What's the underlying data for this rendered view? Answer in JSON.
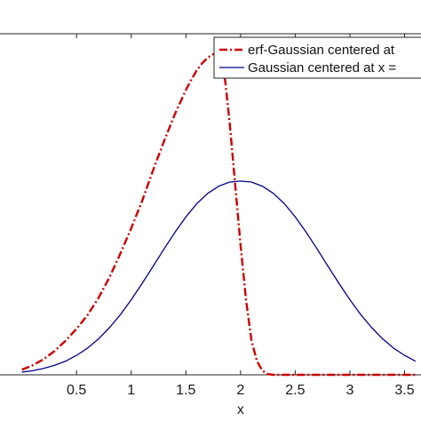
{
  "chart_data": {
    "type": "line",
    "xlabel": "x",
    "ylabel": "",
    "xlim": [
      -0.2,
      3.65
    ],
    "ylim": [
      0,
      1
    ],
    "x_ticks": [
      0.5,
      1,
      1.5,
      2,
      2.5,
      3,
      3.5
    ],
    "x_tick_labels": [
      "0.5",
      "1",
      "1.5",
      "2",
      "2.5",
      "3",
      "3.5"
    ],
    "legend_position": "top-right",
    "series": [
      {
        "name": "erf-Gaussian centered at",
        "color": "#cc0000",
        "style": "dash-dot",
        "x": [
          0.0,
          0.1,
          0.2,
          0.3,
          0.4,
          0.5,
          0.6,
          0.7,
          0.8,
          0.9,
          1.0,
          1.1,
          1.2,
          1.3,
          1.4,
          1.5,
          1.55,
          1.6,
          1.65,
          1.7,
          1.75,
          1.8,
          1.83,
          1.86,
          1.9,
          1.95,
          2.0,
          2.05,
          2.1,
          2.15,
          2.2,
          2.25,
          2.3,
          2.4,
          2.6,
          2.8,
          3.0,
          3.2,
          3.4,
          3.6
        ],
        "y": [
          0.015,
          0.028,
          0.046,
          0.07,
          0.1,
          0.135,
          0.175,
          0.225,
          0.285,
          0.355,
          0.43,
          0.51,
          0.6,
          0.685,
          0.765,
          0.835,
          0.866,
          0.893,
          0.914,
          0.93,
          0.94,
          0.938,
          0.915,
          0.86,
          0.74,
          0.56,
          0.38,
          0.22,
          0.1,
          0.04,
          0.012,
          0.002,
          0.0,
          0.0,
          0.0,
          0.0,
          0.0,
          0.0,
          0.0,
          0.0
        ]
      },
      {
        "name": "Gaussian centered at x =",
        "color": "#00008b",
        "style": "solid",
        "x": [
          0.0,
          0.1,
          0.2,
          0.3,
          0.4,
          0.5,
          0.6,
          0.7,
          0.8,
          0.9,
          1.0,
          1.1,
          1.2,
          1.3,
          1.4,
          1.5,
          1.6,
          1.7,
          1.8,
          1.9,
          2.0,
          2.1,
          2.2,
          2.3,
          2.4,
          2.5,
          2.6,
          2.7,
          2.8,
          2.9,
          3.0,
          3.1,
          3.2,
          3.3,
          3.4,
          3.5,
          3.6
        ],
        "y": [
          0.008,
          0.012,
          0.019,
          0.028,
          0.04,
          0.057,
          0.078,
          0.105,
          0.138,
          0.176,
          0.22,
          0.268,
          0.318,
          0.369,
          0.418,
          0.463,
          0.502,
          0.532,
          0.553,
          0.565,
          0.568,
          0.565,
          0.553,
          0.532,
          0.502,
          0.463,
          0.418,
          0.369,
          0.318,
          0.268,
          0.22,
          0.176,
          0.138,
          0.105,
          0.078,
          0.057,
          0.04
        ]
      }
    ]
  }
}
